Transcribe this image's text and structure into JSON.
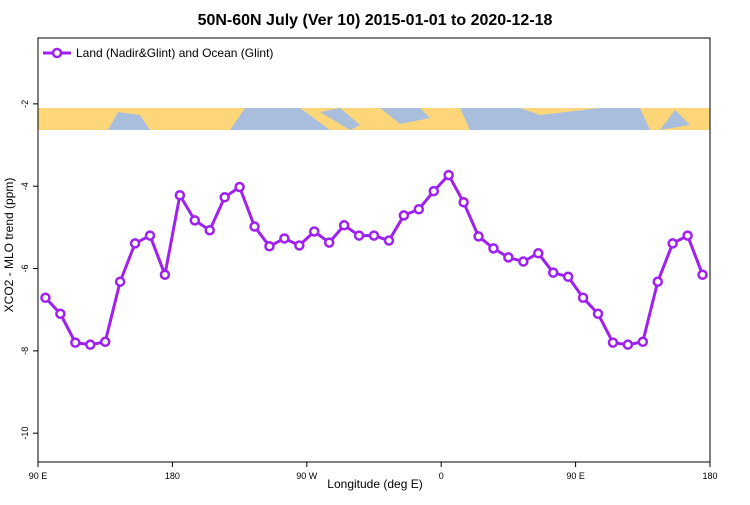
{
  "chart_data": {
    "type": "line",
    "title": "50N-60N July (Ver 10)   2015-01-01 to 2020-12-18",
    "x_label": "Longitude (deg E)",
    "y_label": "XCO2 - MLO trend (ppm)",
    "x": [
      95,
      105,
      115,
      125,
      135,
      145,
      155,
      165,
      175,
      185,
      195,
      205,
      215,
      225,
      235,
      245,
      255,
      265,
      275,
      285,
      295,
      305,
      315,
      325,
      335,
      345,
      355,
      365,
      375,
      385,
      395,
      405,
      415,
      425,
      435,
      445,
      455,
      465,
      475,
      485,
      495,
      505,
      515,
      525,
      535
    ],
    "series": [
      {
        "name": "Land (Nadir&Glint) and Ocean (Glint)",
        "color": "#a020f0",
        "values": [
          -6.71,
          -7.1,
          -7.8,
          -7.85,
          -7.78,
          -6.32,
          -5.39,
          -5.2,
          -6.15,
          -4.22,
          -4.83,
          -5.07,
          -4.27,
          -4.02,
          -4.98,
          -5.46,
          -5.27,
          -5.44,
          -5.1,
          -5.37,
          -4.95,
          -5.2,
          -5.2,
          -5.32,
          -4.71,
          -4.56,
          -4.12,
          -3.73,
          -4.39,
          -5.22,
          -5.51,
          -5.73,
          -5.83,
          -5.63,
          -6.1,
          -6.2,
          -6.71,
          -7.1,
          -7.8,
          -7.85,
          -7.78,
          -6.32,
          -5.39,
          -5.2,
          -6.15
        ]
      }
    ],
    "xlim": [
      90,
      540
    ],
    "xticks": [
      {
        "value": 90,
        "label": "90 E"
      },
      180,
      {
        "value": 270,
        "label": "90 W"
      },
      {
        "value": 360,
        "label": "0"
      },
      {
        "value": 450,
        "label": "90 E"
      },
      {
        "value": 540,
        "label": "180"
      }
    ],
    "ylim": [
      -10.7,
      -0.4
    ],
    "yticks": [
      -10,
      -8,
      -6,
      -4,
      -2
    ],
    "legend": "top-left",
    "grid": false
  }
}
